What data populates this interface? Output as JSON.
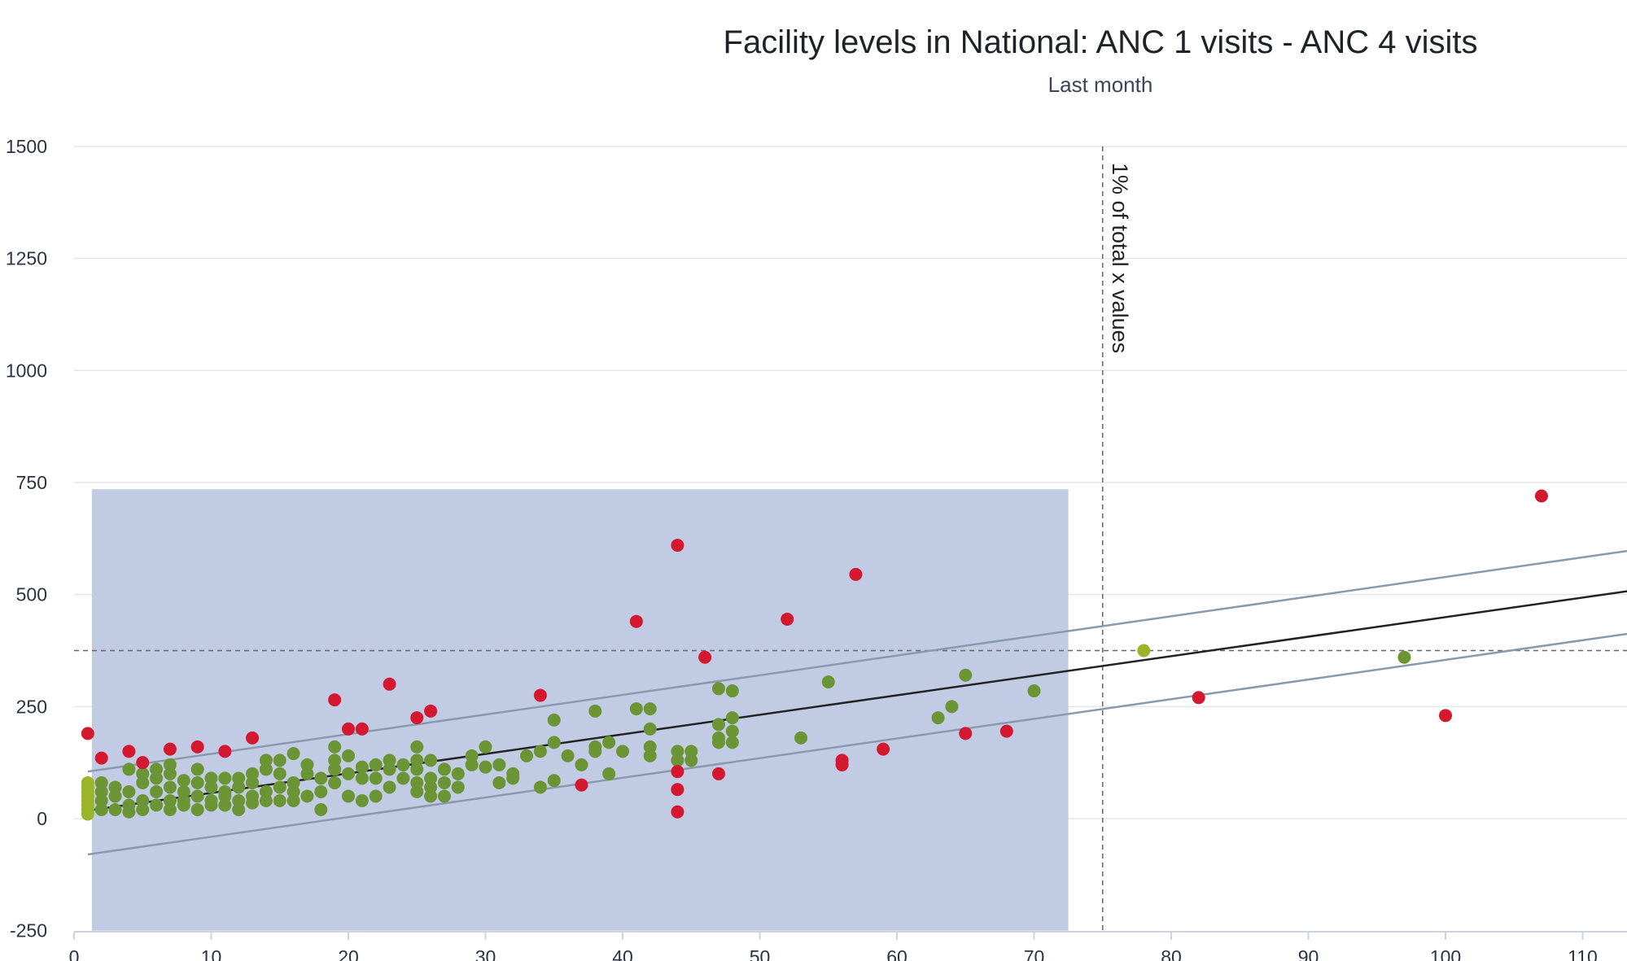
{
  "chart_data": {
    "type": "scatter",
    "title": "Facility levels in National: ANC 1 visits - ANC 4 visits",
    "subtitle": "Last month",
    "xlabel": "",
    "ylabel": "",
    "xlim": [
      0,
      115
    ],
    "ylim": [
      -250,
      1500
    ],
    "x_ticks": [
      0,
      10,
      20,
      30,
      40,
      50,
      60,
      70,
      80,
      90,
      100,
      110
    ],
    "y_ticks": [
      -250,
      0,
      250,
      500,
      750,
      1000,
      1250,
      1500
    ],
    "grid": true,
    "legend": "none",
    "highlight_region": {
      "x": [
        1.3,
        72.5
      ],
      "y": [
        -250,
        735
      ],
      "color": "#c2cbe4"
    },
    "reference_lines": {
      "vertical": {
        "x": 75,
        "label": "1% of total x values"
      },
      "horizontal": {
        "y": 375
      }
    },
    "regression": {
      "color": "#222222",
      "band_color": "#8a99ad",
      "fit": {
        "from": [
          1,
          18
        ],
        "to": [
          115,
          515
        ]
      },
      "upper": {
        "from": [
          1,
          105
        ],
        "to": [
          115,
          605
        ]
      },
      "lower": {
        "from": [
          1,
          -80
        ],
        "to": [
          115,
          420
        ]
      }
    },
    "colors": {
      "within": "#6b9535",
      "low_value": "#9bb52a",
      "outlier": "#d3182f"
    },
    "series": [
      {
        "role": "within",
        "points": [
          [
            2,
            40
          ],
          [
            2,
            80
          ],
          [
            2,
            20
          ],
          [
            2,
            60
          ],
          [
            3,
            50
          ],
          [
            3,
            20
          ],
          [
            3,
            70
          ],
          [
            4,
            30
          ],
          [
            4,
            15
          ],
          [
            4,
            60
          ],
          [
            4,
            110
          ],
          [
            5,
            40
          ],
          [
            5,
            80
          ],
          [
            5,
            20
          ],
          [
            5,
            100
          ],
          [
            6,
            60
          ],
          [
            6,
            30
          ],
          [
            6,
            90
          ],
          [
            6,
            110
          ],
          [
            7,
            40
          ],
          [
            7,
            70
          ],
          [
            7,
            20
          ],
          [
            7,
            100
          ],
          [
            7,
            120
          ],
          [
            8,
            30
          ],
          [
            8,
            60
          ],
          [
            8,
            85
          ],
          [
            8,
            40
          ],
          [
            9,
            50
          ],
          [
            9,
            80
          ],
          [
            9,
            20
          ],
          [
            9,
            110
          ],
          [
            10,
            40
          ],
          [
            10,
            70
          ],
          [
            10,
            90
          ],
          [
            10,
            30
          ],
          [
            11,
            60
          ],
          [
            11,
            30
          ],
          [
            11,
            90
          ],
          [
            11,
            50
          ],
          [
            12,
            70
          ],
          [
            12,
            40
          ],
          [
            12,
            20
          ],
          [
            12,
            90
          ],
          [
            13,
            50
          ],
          [
            13,
            80
          ],
          [
            13,
            100
          ],
          [
            13,
            35
          ],
          [
            14,
            60
          ],
          [
            14,
            40
          ],
          [
            14,
            130
          ],
          [
            14,
            110
          ],
          [
            15,
            70
          ],
          [
            15,
            40
          ],
          [
            15,
            130
          ],
          [
            15,
            100
          ],
          [
            16,
            80
          ],
          [
            16,
            60
          ],
          [
            16,
            145
          ],
          [
            16,
            40
          ],
          [
            17,
            50
          ],
          [
            17,
            100
          ],
          [
            17,
            120
          ],
          [
            18,
            20
          ],
          [
            18,
            60
          ],
          [
            18,
            90
          ],
          [
            19,
            80
          ],
          [
            19,
            130
          ],
          [
            19,
            160
          ],
          [
            19,
            110
          ],
          [
            20,
            50
          ],
          [
            20,
            100
          ],
          [
            20,
            140
          ],
          [
            21,
            90
          ],
          [
            21,
            40
          ],
          [
            21,
            115
          ],
          [
            22,
            120
          ],
          [
            22,
            50
          ],
          [
            22,
            90
          ],
          [
            23,
            70
          ],
          [
            23,
            110
          ],
          [
            23,
            130
          ],
          [
            24,
            120
          ],
          [
            24,
            90
          ],
          [
            25,
            160
          ],
          [
            25,
            110
          ],
          [
            25,
            80
          ],
          [
            25,
            60
          ],
          [
            25,
            130
          ],
          [
            26,
            50
          ],
          [
            26,
            90
          ],
          [
            26,
            130
          ],
          [
            26,
            70
          ],
          [
            27,
            110
          ],
          [
            27,
            80
          ],
          [
            27,
            50
          ],
          [
            28,
            100
          ],
          [
            28,
            70
          ],
          [
            29,
            120
          ],
          [
            29,
            140
          ],
          [
            30,
            160
          ],
          [
            30,
            115
          ],
          [
            31,
            80
          ],
          [
            31,
            120
          ],
          [
            32,
            90
          ],
          [
            32,
            100
          ],
          [
            33,
            140
          ],
          [
            34,
            150
          ],
          [
            34,
            70
          ],
          [
            35,
            220
          ],
          [
            35,
            170
          ],
          [
            35,
            85
          ],
          [
            36,
            140
          ],
          [
            37,
            120
          ],
          [
            38,
            240
          ],
          [
            38,
            150
          ],
          [
            38,
            160
          ],
          [
            39,
            100
          ],
          [
            39,
            170
          ],
          [
            40,
            150
          ],
          [
            41,
            245
          ],
          [
            42,
            245
          ],
          [
            42,
            200
          ],
          [
            42,
            160
          ],
          [
            42,
            140
          ],
          [
            44,
            130
          ],
          [
            44,
            150
          ],
          [
            45,
            150
          ],
          [
            45,
            130
          ],
          [
            47,
            290
          ],
          [
            47,
            210
          ],
          [
            47,
            180
          ],
          [
            47,
            170
          ],
          [
            48,
            285
          ],
          [
            48,
            225
          ],
          [
            48,
            195
          ],
          [
            48,
            170
          ],
          [
            53,
            180
          ],
          [
            55,
            305
          ],
          [
            63,
            225
          ],
          [
            64,
            250
          ],
          [
            65,
            320
          ],
          [
            70,
            285
          ],
          [
            97,
            360
          ]
        ]
      },
      {
        "role": "low_value",
        "points": [
          [
            1,
            80
          ],
          [
            1,
            70
          ],
          [
            1,
            60
          ],
          [
            1,
            50
          ],
          [
            1,
            40
          ],
          [
            1,
            30
          ],
          [
            1,
            20
          ],
          [
            1,
            10
          ],
          [
            78,
            375
          ]
        ]
      },
      {
        "role": "outlier",
        "points": [
          [
            1,
            190
          ],
          [
            2,
            135
          ],
          [
            4,
            150
          ],
          [
            5,
            125
          ],
          [
            7,
            155
          ],
          [
            9,
            160
          ],
          [
            11,
            150
          ],
          [
            13,
            180
          ],
          [
            19,
            265
          ],
          [
            20,
            200
          ],
          [
            21,
            200
          ],
          [
            23,
            300
          ],
          [
            25,
            225
          ],
          [
            26,
            240
          ],
          [
            34,
            275
          ],
          [
            37,
            75
          ],
          [
            41,
            440
          ],
          [
            44,
            610
          ],
          [
            44,
            105
          ],
          [
            44,
            65
          ],
          [
            44,
            15
          ],
          [
            46,
            360
          ],
          [
            47,
            100
          ],
          [
            52,
            445
          ],
          [
            56,
            130
          ],
          [
            56,
            120
          ],
          [
            57,
            545
          ],
          [
            59,
            155
          ],
          [
            65,
            190
          ],
          [
            68,
            195
          ],
          [
            82,
            270
          ],
          [
            100,
            230
          ],
          [
            107,
            720
          ]
        ]
      }
    ]
  }
}
